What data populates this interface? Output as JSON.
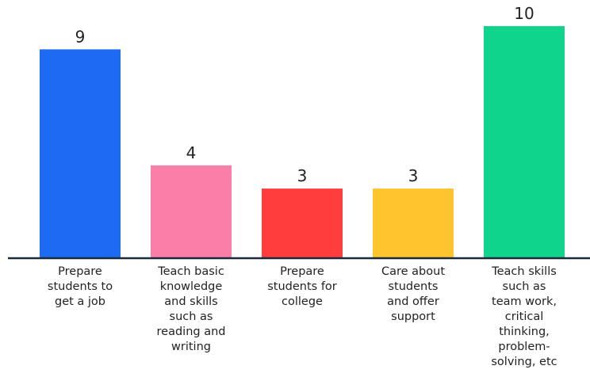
{
  "chart_data": {
    "type": "bar",
    "categories": [
      "Prepare students to get a job",
      "Teach basic knowledge and skills such as reading and writing",
      "Prepare students for college",
      "Care about students and offer support",
      "Teach skills such as team work, critical thinking, problem-solving, etc"
    ],
    "category_lines": [
      [
        "Prepare",
        "students to",
        "get a job"
      ],
      [
        "Teach basic",
        "knowledge",
        "and skills",
        "such as",
        "reading and",
        "writing"
      ],
      [
        "Prepare",
        "students for",
        "college"
      ],
      [
        "Care about",
        "students",
        "and offer",
        "support"
      ],
      [
        "Teach skills",
        "such as",
        "team work,",
        "critical",
        "thinking,",
        "problem-",
        "solving, etc"
      ]
    ],
    "values": [
      9,
      4,
      3,
      3,
      10
    ],
    "value_labels": [
      "9",
      "4",
      "3",
      "3",
      "10"
    ],
    "colors": [
      "#1d6bf3",
      "#f97fa9",
      "#ff3d3d",
      "#ffc42e",
      "#0fd48c"
    ],
    "ylim": [
      0,
      10
    ],
    "title": "",
    "xlabel": "",
    "ylabel": "",
    "grid": false,
    "legend": "none",
    "baseline_color": "#1a2a3a"
  }
}
